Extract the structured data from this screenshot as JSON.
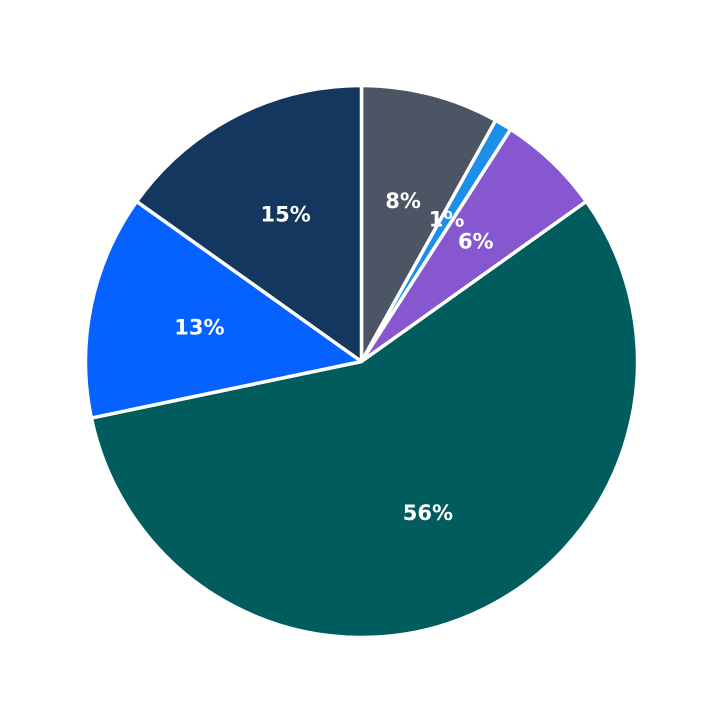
{
  "chart_data": {
    "type": "pie",
    "title": "",
    "start_angle": "12 o'clock",
    "direction": "clockwise",
    "legend": "none",
    "slices": [
      {
        "label": "8%",
        "value": 8,
        "color": "#4b5563"
      },
      {
        "label": "1%",
        "value": 1,
        "color": "#1d8fe8"
      },
      {
        "label": "6%",
        "value": 6,
        "color": "#8657cf"
      },
      {
        "label": "56%",
        "value": 56,
        "color": "#015d5d"
      },
      {
        "label": "13%",
        "value": 13,
        "color": "#0562ff"
      },
      {
        "label": "15%",
        "value": 15,
        "color": "#14375f"
      }
    ]
  }
}
